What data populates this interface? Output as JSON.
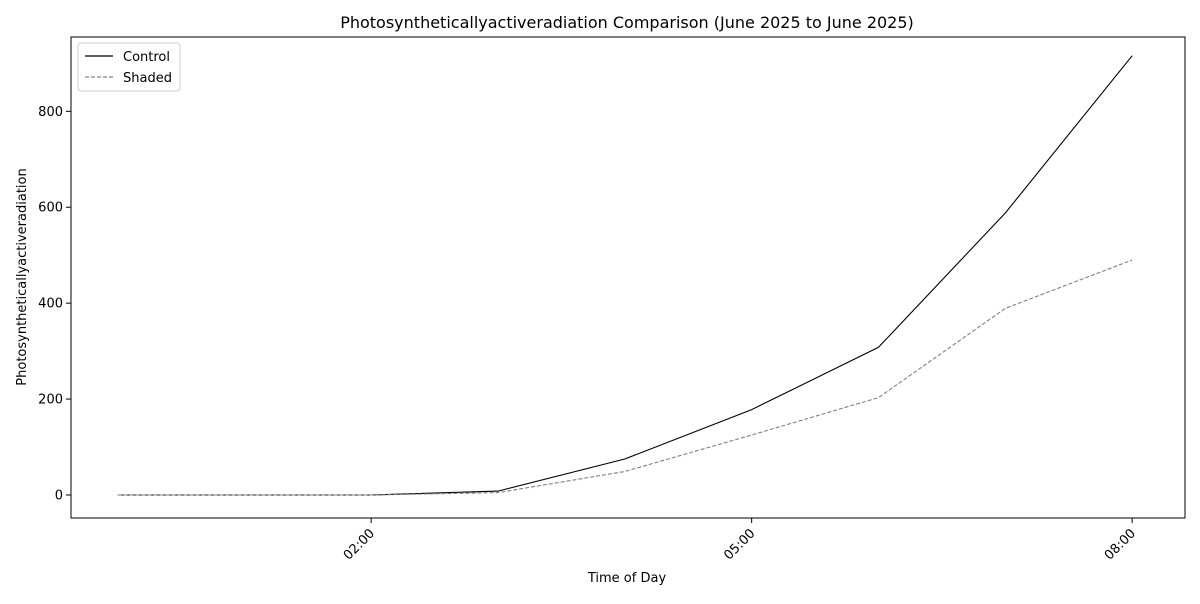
{
  "chart_data": {
    "type": "line",
    "title": "Photosyntheticallyactiveradiation Comparison (June 2025 to June 2025)",
    "xlabel": "Time of Day",
    "ylabel": "Photosyntheticallyactiveradiation",
    "x": [
      "00:00",
      "01:00",
      "02:00",
      "03:00",
      "04:00",
      "05:00",
      "06:00",
      "07:00",
      "08:00"
    ],
    "xlim": [
      "-00:22",
      "08:25"
    ],
    "ylim": [
      -48,
      955
    ],
    "x_ticks": [
      "02:00",
      "05:00",
      "08:00"
    ],
    "y_ticks": [
      0,
      200,
      400,
      600,
      800
    ],
    "grid": false,
    "legend_position": "top-left",
    "series": [
      {
        "name": "Control",
        "values": [
          0,
          0,
          0,
          8,
          75,
          178,
          308,
          588,
          916
        ],
        "color": "#000000",
        "style": "solid"
      },
      {
        "name": "Shaded",
        "values": [
          0,
          0,
          0,
          5,
          49,
          125,
          203,
          389,
          490
        ],
        "color": "#808080",
        "style": "dashed"
      }
    ]
  }
}
